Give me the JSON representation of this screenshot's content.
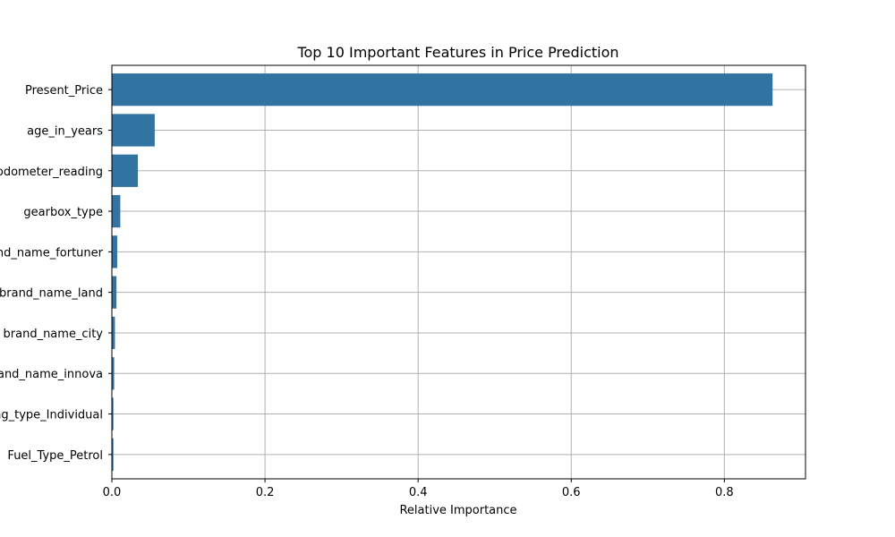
{
  "chart_data": {
    "type": "bar",
    "orientation": "horizontal",
    "title": "Top 10 Important Features in Price Prediction",
    "xlabel": "Relative Importance",
    "ylabel": "",
    "categories": [
      "Present_Price",
      "age_in_years",
      "odometer_reading",
      "gearbox_type",
      "brand_name_fortuner",
      "brand_name_land",
      "brand_name_city",
      "brand_name_innova",
      "selling_type_Individual",
      "Fuel_Type_Petrol"
    ],
    "values": [
      0.863,
      0.056,
      0.034,
      0.011,
      0.007,
      0.006,
      0.004,
      0.003,
      0.002,
      0.002
    ],
    "xlim": [
      0,
      0.906
    ],
    "xticks": [
      0.0,
      0.2,
      0.4,
      0.6,
      0.8
    ],
    "xtick_labels": [
      "0.0",
      "0.2",
      "0.4",
      "0.6",
      "0.8"
    ],
    "grid": true,
    "bar_color": "#3274a1"
  }
}
